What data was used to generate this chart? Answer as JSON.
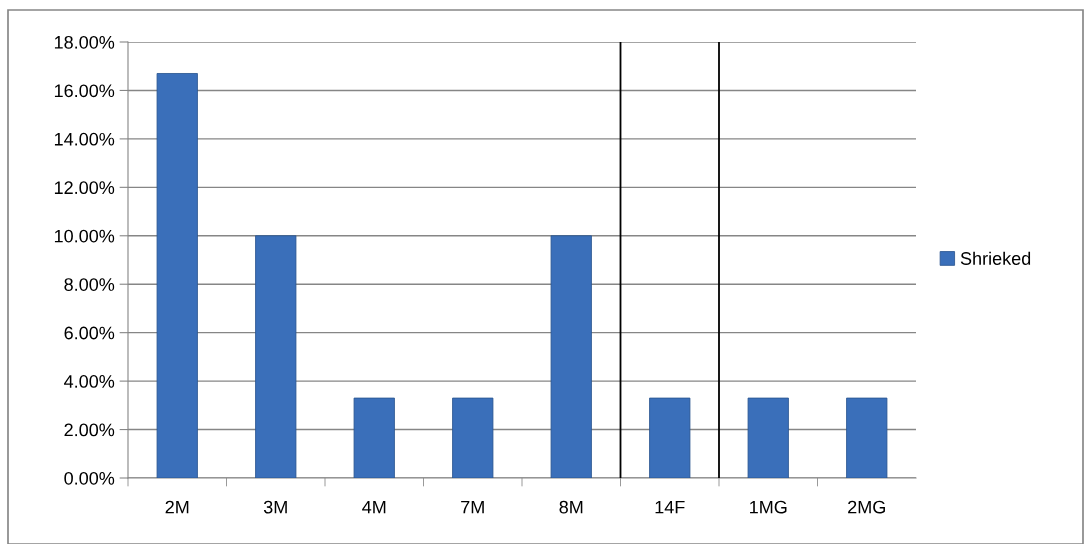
{
  "chart_data": {
    "type": "bar",
    "categories": [
      "2M",
      "3M",
      "4M",
      "7M",
      "8M",
      "14F",
      "1MG",
      "2MG"
    ],
    "series": [
      {
        "name": "Shrieked",
        "color": "#3a6fba",
        "values": [
          16.7,
          10.0,
          3.3,
          3.3,
          10.0,
          3.3,
          3.3,
          3.3
        ]
      }
    ],
    "ylim": [
      0,
      18
    ],
    "yticks": [
      {
        "value": 0,
        "label": "0.00%"
      },
      {
        "value": 2,
        "label": "2.00%"
      },
      {
        "value": 4,
        "label": "4.00%"
      },
      {
        "value": 6,
        "label": "6.00%"
      },
      {
        "value": 8,
        "label": "8.00%"
      },
      {
        "value": 10,
        "label": "10.00%"
      },
      {
        "value": 12,
        "label": "12.00%"
      },
      {
        "value": 14,
        "label": "14.00%"
      },
      {
        "value": 16,
        "label": "16.00%"
      },
      {
        "value": 18,
        "label": "18.00%"
      }
    ],
    "grid": "y",
    "legend": "right"
  }
}
